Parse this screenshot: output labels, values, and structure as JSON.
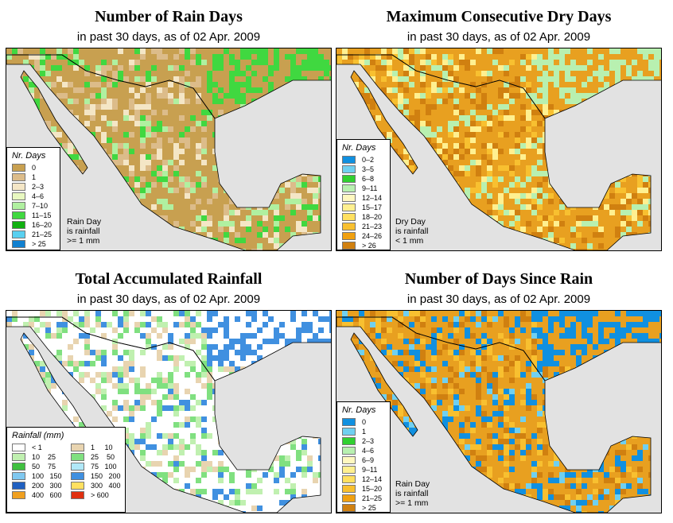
{
  "panels": [
    {
      "title": "Number of Rain Days",
      "subtitle": "in past 30 days, as of  02 Apr. 2009",
      "legend_title": "Nr. Days",
      "legend": [
        {
          "label": "0",
          "color": "#c8a050"
        },
        {
          "label": "1",
          "color": "#dcbc8a"
        },
        {
          "label": "2–3",
          "color": "#f4e6c6"
        },
        {
          "label": "4–6",
          "color": "#e8f8c0"
        },
        {
          "label": "7–10",
          "color": "#b0f0a0"
        },
        {
          "label": "11–15",
          "color": "#40d840"
        },
        {
          "label": "16–20",
          "color": "#10b010"
        },
        {
          "label": "21–25",
          "color": "#58d0f0"
        },
        {
          "label": "> 25",
          "color": "#1080d0"
        }
      ],
      "note": [
        "Rain Day",
        "is rainfall",
        ">= 1 mm"
      ],
      "palette": {
        "base": "#c8a050",
        "accent": [
          "#dcbc8a",
          "#f4e6c6",
          "#b0f0a0",
          "#40d840"
        ]
      }
    },
    {
      "title": "Maximum Consecutive Dry Days",
      "subtitle": "in past 30 days, as of  02 Apr. 2009",
      "legend_title": "Nr. Days",
      "legend": [
        {
          "label": "0–2",
          "color": "#1090e0"
        },
        {
          "label": "3–5",
          "color": "#70d0f0"
        },
        {
          "label": "6–8",
          "color": "#30d030"
        },
        {
          "label": "9–11",
          "color": "#b8f0b0"
        },
        {
          "label": "12–14",
          "color": "#fff8c0"
        },
        {
          "label": "15–17",
          "color": "#fff090"
        },
        {
          "label": "18–20",
          "color": "#ffe060"
        },
        {
          "label": "21–23",
          "color": "#f8c030"
        },
        {
          "label": "24–26",
          "color": "#f0a010"
        },
        {
          "label": "> 26",
          "color": "#d08010"
        }
      ],
      "note": [
        "Dry Day",
        "is rainfall",
        "< 1 mm"
      ],
      "palette": {
        "base": "#e8a020",
        "accent": [
          "#d08010",
          "#f8c030",
          "#fff090",
          "#b8f0b0"
        ]
      }
    },
    {
      "title": "Total Accumulated Rainfall",
      "subtitle": "in past 30 days, as of  02 Apr. 2009",
      "legend_title": "Rainfall (mm)",
      "legend": [
        {
          "label": "< 1",
          "color": "#ffffff"
        },
        {
          "label": "1     10",
          "color": "#e8d4b0"
        },
        {
          "label": "10    25",
          "color": "#c0f0b0"
        },
        {
          "label": "25    50",
          "color": "#80e080"
        },
        {
          "label": "50    75",
          "color": "#40c040"
        },
        {
          "label": "75   100",
          "color": "#b0e8f8"
        },
        {
          "label": "100   150",
          "color": "#80c8f0"
        },
        {
          "label": "150   200",
          "color": "#4090e0"
        },
        {
          "label": "200   300",
          "color": "#2060c0"
        },
        {
          "label": "300   400",
          "color": "#ffe060"
        },
        {
          "label": "400   600",
          "color": "#f0a020"
        },
        {
          "label": "> 600",
          "color": "#e03010"
        }
      ],
      "note": [],
      "palette": {
        "base": "#ffffff",
        "accent": [
          "#e8d4b0",
          "#c0f0b0",
          "#80e080",
          "#4090e0"
        ]
      }
    },
    {
      "title": "Number of Days Since Rain",
      "subtitle": "in past 30 days, as of  02 Apr. 2009",
      "legend_title": "Nr. Days",
      "legend": [
        {
          "label": "0",
          "color": "#1090e0"
        },
        {
          "label": "1",
          "color": "#70d0f0"
        },
        {
          "label": "2–3",
          "color": "#30d030"
        },
        {
          "label": "4–6",
          "color": "#b8f0b0"
        },
        {
          "label": "6–9",
          "color": "#fff8c0"
        },
        {
          "label": "9–11",
          "color": "#fff090"
        },
        {
          "label": "12–14",
          "color": "#ffe060"
        },
        {
          "label": "15–20",
          "color": "#f8c030"
        },
        {
          "label": "21–25",
          "color": "#f0a010"
        },
        {
          "label": "> 25",
          "color": "#d08010"
        }
      ],
      "note": [
        "Rain Day",
        "is rainfall",
        ">= 1 mm"
      ],
      "palette": {
        "base": "#e8a020",
        "accent": [
          "#d08010",
          "#f8c030",
          "#1090e0",
          "#70d0f0"
        ]
      }
    }
  ]
}
